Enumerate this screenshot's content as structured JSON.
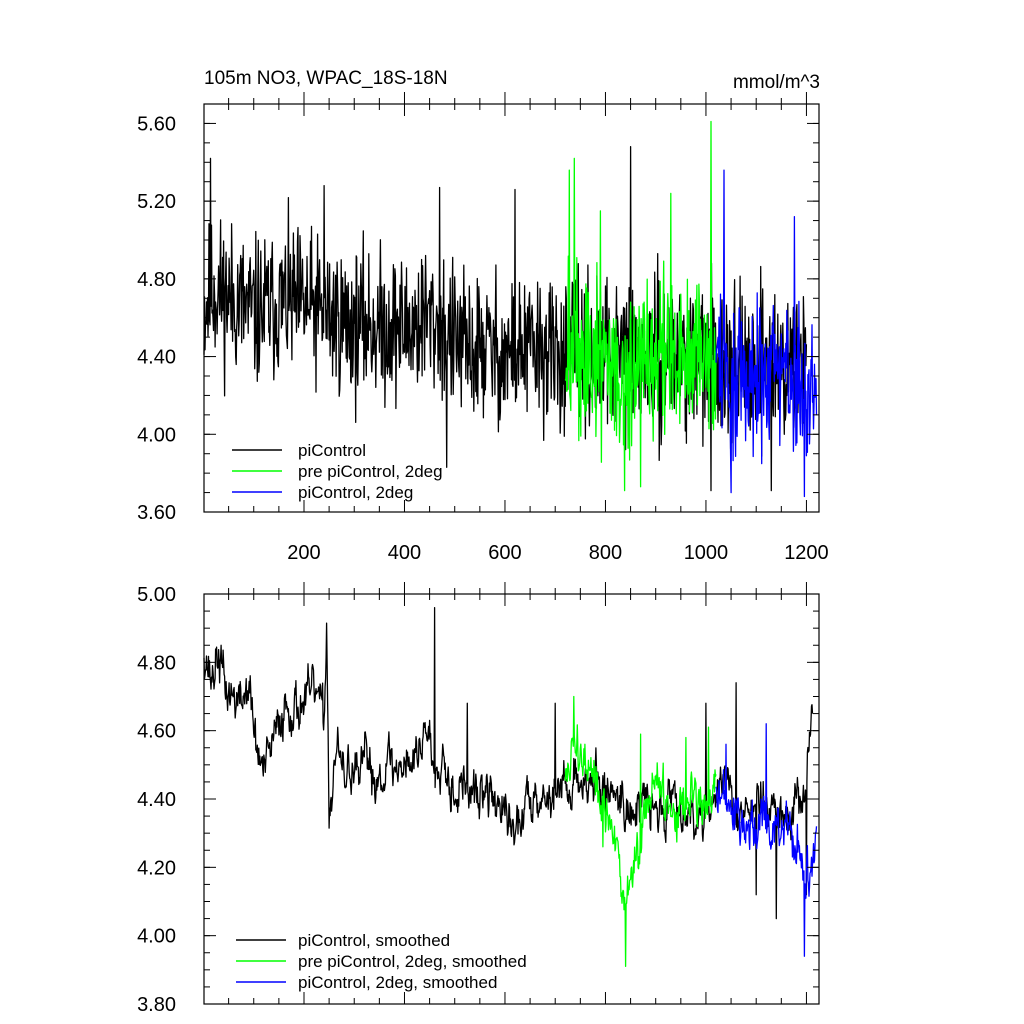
{
  "chart_data": [
    {
      "type": "line",
      "title": "105m NO3, WPAC_18S-18N",
      "units": "mmol/m^3",
      "xlim": [
        1,
        1225
      ],
      "ylim": [
        3.6,
        5.7
      ],
      "xticks": [
        200,
        400,
        600,
        800,
        1000,
        1200
      ],
      "yticks": [
        3.6,
        4.0,
        4.4,
        4.8,
        5.2,
        5.6
      ],
      "xtick_labels": [
        "200",
        "400",
        "600",
        "800",
        "1000",
        "1200"
      ],
      "ytick_labels": [
        "3.60",
        "4.00",
        "4.40",
        "4.80",
        "5.20",
        "5.60"
      ],
      "legend_position": "bottom-left",
      "series": [
        {
          "name": "piControl",
          "color": "#000000",
          "points": [
            [
              1,
              4.65
            ],
            [
              20,
              4.75
            ],
            [
              40,
              4.72
            ],
            [
              60,
              4.7
            ],
            [
              80,
              4.66
            ],
            [
              100,
              4.62
            ],
            [
              120,
              4.64
            ],
            [
              140,
              4.66
            ],
            [
              160,
              4.68
            ],
            [
              180,
              4.67
            ],
            [
              200,
              4.66
            ],
            [
              220,
              4.64
            ],
            [
              240,
              4.62
            ],
            [
              260,
              4.6
            ],
            [
              280,
              4.58
            ],
            [
              300,
              4.55
            ],
            [
              320,
              4.57
            ],
            [
              340,
              4.56
            ],
            [
              360,
              4.55
            ],
            [
              380,
              4.56
            ],
            [
              400,
              4.54
            ],
            [
              420,
              4.56
            ],
            [
              440,
              4.6
            ],
            [
              460,
              4.57
            ],
            [
              480,
              4.54
            ],
            [
              500,
              4.48
            ],
            [
              520,
              4.44
            ],
            [
              540,
              4.42
            ],
            [
              560,
              4.45
            ],
            [
              580,
              4.43
            ],
            [
              600,
              4.4
            ],
            [
              620,
              4.42
            ],
            [
              640,
              4.43
            ],
            [
              660,
              4.44
            ],
            [
              680,
              4.42
            ],
            [
              700,
              4.4
            ],
            [
              720,
              4.42
            ],
            [
              740,
              4.44
            ],
            [
              760,
              4.4
            ],
            [
              780,
              4.38
            ],
            [
              800,
              4.4
            ],
            [
              820,
              4.39
            ],
            [
              840,
              4.41
            ],
            [
              860,
              4.4
            ],
            [
              880,
              4.38
            ],
            [
              900,
              4.37
            ],
            [
              920,
              4.4
            ],
            [
              940,
              4.42
            ],
            [
              960,
              4.38
            ],
            [
              980,
              4.36
            ],
            [
              1000,
              4.38
            ],
            [
              1020,
              4.4
            ],
            [
              1040,
              4.42
            ],
            [
              1060,
              4.36
            ],
            [
              1080,
              4.32
            ],
            [
              1100,
              4.36
            ],
            [
              1120,
              4.4
            ],
            [
              1140,
              4.34
            ],
            [
              1160,
              4.33
            ],
            [
              1180,
              4.36
            ],
            [
              1200,
              4.38
            ]
          ],
          "noise": 0.19,
          "extremes": [
            [
              14,
              5.42
            ],
            [
              240,
              5.28
            ],
            [
              470,
              5.27
            ],
            [
              484,
              3.83
            ],
            [
              620,
              5.26
            ],
            [
              850,
              5.48
            ],
            [
              1010,
              3.71
            ],
            [
              1130,
              3.71
            ]
          ]
        },
        {
          "name": "pre piControl, 2deg",
          "color": "#00ff00",
          "points": [
            [
              720,
              4.4
            ],
            [
              740,
              4.42
            ],
            [
              760,
              4.38
            ],
            [
              780,
              4.36
            ],
            [
              800,
              4.38
            ],
            [
              820,
              4.3
            ],
            [
              840,
              4.25
            ],
            [
              860,
              4.33
            ],
            [
              880,
              4.36
            ],
            [
              900,
              4.38
            ],
            [
              920,
              4.4
            ],
            [
              940,
              4.36
            ],
            [
              960,
              4.38
            ],
            [
              980,
              4.4
            ],
            [
              1000,
              4.36
            ],
            [
              1020,
              4.38
            ]
          ],
          "noise": 0.21,
          "extremes": [
            [
              728,
              5.36
            ],
            [
              738,
              5.42
            ],
            [
              790,
              5.15
            ],
            [
              838,
              3.71
            ],
            [
              870,
              3.73
            ],
            [
              930,
              5.24
            ],
            [
              1010,
              5.61
            ]
          ]
        },
        {
          "name": "piControl, 2deg",
          "color": "#0000ff",
          "points": [
            [
              1020,
              4.34
            ],
            [
              1040,
              4.33
            ],
            [
              1060,
              4.3
            ],
            [
              1080,
              4.28
            ],
            [
              1100,
              4.3
            ],
            [
              1120,
              4.32
            ],
            [
              1140,
              4.28
            ],
            [
              1160,
              4.3
            ],
            [
              1180,
              4.26
            ],
            [
              1200,
              4.28
            ],
            [
              1220,
              4.26
            ]
          ],
          "noise": 0.18,
          "extremes": [
            [
              1036,
              5.36
            ],
            [
              1050,
              3.7
            ],
            [
              1176,
              5.12
            ],
            [
              1196,
              3.68
            ]
          ]
        }
      ]
    },
    {
      "type": "line",
      "title": "",
      "xlim": [
        1,
        1225
      ],
      "ylim": [
        3.8,
        5.0
      ],
      "xticks": [
        200,
        400,
        600,
        800,
        1000,
        1200
      ],
      "yticks": [
        3.8,
        4.0,
        4.2,
        4.4,
        4.6,
        4.8,
        5.0
      ],
      "ytick_labels": [
        "3.80",
        "4.00",
        "4.20",
        "4.40",
        "4.60",
        "4.80",
        "5.00"
      ],
      "legend_position": "bottom-left",
      "series": [
        {
          "name": "piControl, smoothed",
          "color": "#000000",
          "points": [
            [
              1,
              4.84
            ],
            [
              15,
              4.75
            ],
            [
              30,
              4.82
            ],
            [
              45,
              4.72
            ],
            [
              60,
              4.7
            ],
            [
              75,
              4.68
            ],
            [
              90,
              4.74
            ],
            [
              105,
              4.55
            ],
            [
              120,
              4.48
            ],
            [
              135,
              4.55
            ],
            [
              150,
              4.62
            ],
            [
              165,
              4.68
            ],
            [
              180,
              4.66
            ],
            [
              195,
              4.68
            ],
            [
              210,
              4.7
            ],
            [
              225,
              4.72
            ],
            [
              240,
              4.62
            ],
            [
              245,
              4.94
            ],
            [
              250,
              4.35
            ],
            [
              265,
              4.55
            ],
            [
              280,
              4.46
            ],
            [
              295,
              4.5
            ],
            [
              310,
              4.44
            ],
            [
              325,
              4.55
            ],
            [
              340,
              4.45
            ],
            [
              355,
              4.48
            ],
            [
              370,
              4.52
            ],
            [
              385,
              4.47
            ],
            [
              400,
              4.53
            ],
            [
              415,
              4.5
            ],
            [
              430,
              4.55
            ],
            [
              445,
              4.62
            ],
            [
              460,
              4.48
            ],
            [
              475,
              4.55
            ],
            [
              490,
              4.45
            ],
            [
              505,
              4.42
            ],
            [
              520,
              4.44
            ],
            [
              540,
              4.4
            ],
            [
              560,
              4.42
            ],
            [
              580,
              4.4
            ],
            [
              600,
              4.35
            ],
            [
              620,
              4.3
            ],
            [
              640,
              4.38
            ],
            [
              660,
              4.43
            ],
            [
              680,
              4.4
            ],
            [
              700,
              4.42
            ],
            [
              720,
              4.44
            ],
            [
              740,
              4.45
            ],
            [
              760,
              4.46
            ],
            [
              780,
              4.44
            ],
            [
              800,
              4.42
            ],
            [
              820,
              4.43
            ],
            [
              840,
              4.38
            ],
            [
              860,
              4.36
            ],
            [
              880,
              4.4
            ],
            [
              900,
              4.36
            ],
            [
              920,
              4.38
            ],
            [
              940,
              4.42
            ],
            [
              960,
              4.36
            ],
            [
              980,
              4.34
            ],
            [
              1000,
              4.38
            ],
            [
              1020,
              4.4
            ],
            [
              1040,
              4.46
            ],
            [
              1060,
              4.38
            ],
            [
              1080,
              4.35
            ],
            [
              1100,
              4.4
            ],
            [
              1120,
              4.38
            ],
            [
              1140,
              4.36
            ],
            [
              1160,
              4.34
            ],
            [
              1180,
              4.38
            ],
            [
              1200,
              4.44
            ],
            [
              1212,
              4.65
            ]
          ],
          "noise": 0.065,
          "extremes": [
            [
              460,
              4.96
            ],
            [
              525,
              4.68
            ],
            [
              700,
              4.68
            ],
            [
              1000,
              4.68
            ],
            [
              1060,
              4.74
            ],
            [
              1100,
              4.12
            ],
            [
              1140,
              4.05
            ],
            [
              1200,
              4.12
            ],
            [
              1212,
              4.65
            ]
          ]
        },
        {
          "name": "pre piControl, 2deg, smoothed",
          "color": "#00ff00",
          "points": [
            [
              720,
              4.46
            ],
            [
              740,
              4.55
            ],
            [
              760,
              4.5
            ],
            [
              780,
              4.42
            ],
            [
              800,
              4.36
            ],
            [
              820,
              4.26
            ],
            [
              840,
              4.08
            ],
            [
              860,
              4.22
            ],
            [
              880,
              4.38
            ],
            [
              900,
              4.46
            ],
            [
              920,
              4.4
            ],
            [
              940,
              4.38
            ],
            [
              960,
              4.4
            ],
            [
              980,
              4.44
            ],
            [
              1000,
              4.38
            ],
            [
              1020,
              4.42
            ]
          ],
          "noise": 0.07,
          "extremes": [
            [
              737,
              4.7
            ],
            [
              795,
              4.26
            ],
            [
              840,
              3.91
            ],
            [
              870,
              4.59
            ],
            [
              960,
              4.58
            ],
            [
              1005,
              4.61
            ]
          ]
        },
        {
          "name": "piControl, 2deg, smoothed",
          "color": "#0000ff",
          "points": [
            [
              1020,
              4.42
            ],
            [
              1040,
              4.4
            ],
            [
              1060,
              4.36
            ],
            [
              1080,
              4.3
            ],
            [
              1100,
              4.32
            ],
            [
              1120,
              4.36
            ],
            [
              1140,
              4.3
            ],
            [
              1160,
              4.34
            ],
            [
              1180,
              4.26
            ],
            [
              1200,
              4.18
            ],
            [
              1220,
              4.26
            ]
          ],
          "noise": 0.07,
          "extremes": [
            [
              1040,
              4.56
            ],
            [
              1120,
              4.62
            ],
            [
              1196,
              3.94
            ],
            [
              1220,
              4.32
            ]
          ]
        }
      ]
    }
  ]
}
